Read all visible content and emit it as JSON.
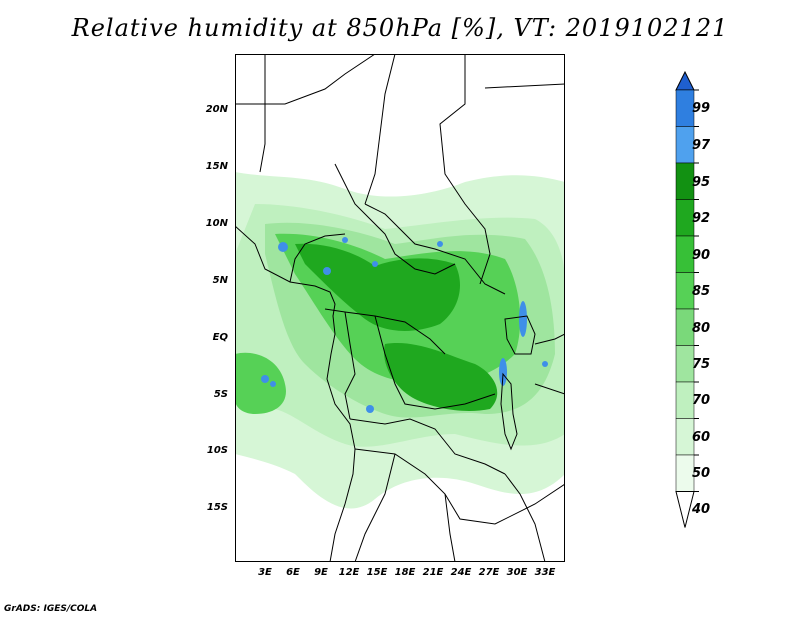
{
  "title": "Relative humidity at 850hPa [%], VT: 2019102121",
  "credit": "GrADS: IGES/COLA",
  "map": {
    "lat_labels": [
      "20N",
      "15N",
      "10N",
      "5N",
      "EQ",
      "5S",
      "10S",
      "15S"
    ],
    "lon_labels": [
      "3E",
      "6E",
      "9E",
      "12E",
      "15E",
      "18E",
      "21E",
      "24E",
      "27E",
      "30E",
      "33E"
    ],
    "lat_range": [
      -19,
      24
    ],
    "lon_range": [
      0,
      35
    ]
  },
  "legend": {
    "labels": [
      "99",
      "97",
      "95",
      "92",
      "90",
      "85",
      "80",
      "75",
      "70",
      "60",
      "50",
      "40"
    ],
    "colors": [
      "#1f5fcf",
      "#2f7fe0",
      "#4fa1ee",
      "#129112",
      "#1fa81f",
      "#37c037",
      "#56d156",
      "#7ad97a",
      "#9fe59f",
      "#bff0bf",
      "#d6f6d6",
      "#ecfbec",
      "#ffffff"
    ]
  },
  "colors": {
    "background": "#ffffff",
    "border": "#000000",
    "humidity_low": "#d6f6d6",
    "humidity_mid": "#7ad97a",
    "humidity_high": "#1fa81f",
    "saturated": "#3f8fe8"
  }
}
